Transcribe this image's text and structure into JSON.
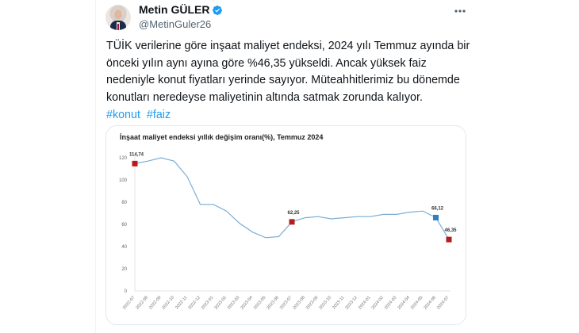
{
  "tweet": {
    "author": {
      "name": "Metin GÜLER",
      "handle": "@MetinGuler26",
      "verified": true
    },
    "more_menu_icon": "more-dots-icon",
    "text": "TÜİK verilerine göre inşaat maliyet endeksi, 2024 yılı Temmuz ayında bir önceki yılın aynı ayına göre %46,35 yükseldi. Ancak yüksek faiz nedeniyle konut fiyatları yerinde sayıyor. Müteahhitlerimiz bu dönemde konutları neredeyse maliyetinin altında satmak zorunda kalıyor.",
    "hashtags": [
      "#konut",
      "#faiz"
    ]
  },
  "colors": {
    "text": "#0f1419",
    "secondary": "#536471",
    "link": "#1d9bf0",
    "line": "#7aaed6",
    "marker_red": "#b71c1c",
    "marker_blue": "#2d7fc1"
  },
  "chart_data": {
    "type": "line",
    "title": "İnşaat maliyet endeksi yıllık değişim oranı(%), Temmuz 2024",
    "xlabel": "",
    "ylabel": "",
    "ylim": [
      0,
      120
    ],
    "yticks": [
      0,
      20,
      40,
      60,
      80,
      100,
      120
    ],
    "grid": false,
    "legend": null,
    "categories": [
      "2022-07",
      "2022-08",
      "2022-09",
      "2022-10",
      "2022-11",
      "2022-12",
      "2023-01",
      "2023-02",
      "2023-03",
      "2023-04",
      "2023-05",
      "2023-06",
      "2023-07",
      "2023-08",
      "2023-09",
      "2023-10",
      "2023-11",
      "2023-12",
      "2024-01",
      "2024-02",
      "2024-03",
      "2024-04",
      "2024-05",
      "2024-06",
      "2024-07"
    ],
    "series": [
      {
        "name": "Yıllık değişim oranı (%)",
        "values": [
          114.74,
          117,
          120,
          117,
          103,
          78,
          78,
          72,
          61,
          53,
          48,
          49,
          62.25,
          66,
          67,
          65,
          66,
          67,
          67,
          69,
          69,
          71,
          72,
          66.12,
          46.35
        ]
      }
    ],
    "annotations": [
      {
        "x": "2022-07",
        "label": "114,74",
        "marker": "red"
      },
      {
        "x": "2023-07",
        "label": "62,25",
        "marker": "red"
      },
      {
        "x": "2024-06",
        "label": "66,12",
        "marker": "blue"
      },
      {
        "x": "2024-07",
        "label": "46,35",
        "marker": "red"
      }
    ]
  }
}
